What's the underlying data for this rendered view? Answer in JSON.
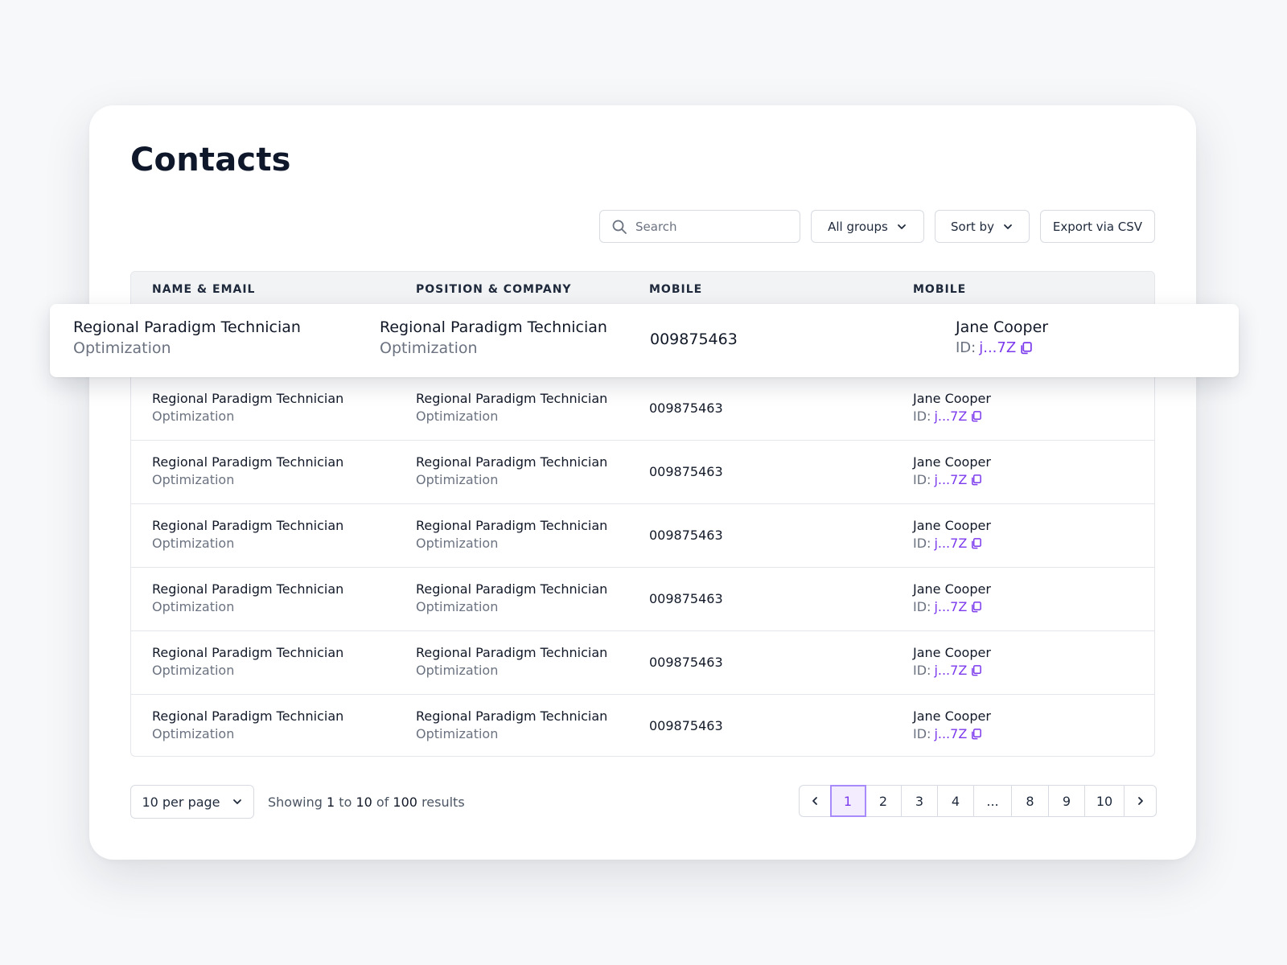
{
  "page": {
    "title": "Contacts"
  },
  "toolbar": {
    "search_placeholder": "Search",
    "groups_label": "All groups",
    "sort_label": "Sort by",
    "export_label": "Export via CSV"
  },
  "table": {
    "columns": [
      "NAME & EMAIL",
      "POSITION & COMPANY",
      "MOBILE",
      "MOBILE"
    ],
    "highlight_row": {
      "name": "Regional Paradigm Technician",
      "email": "Optimization",
      "position": "Regional Paradigm Technician",
      "company": "Optimization",
      "mobile": "009875463",
      "contact_name": "Jane Cooper",
      "id_label": "ID:",
      "id_value": "j...7Z"
    },
    "rows": [
      {
        "name": "Regional Paradigm Technician",
        "email": "Optimization",
        "position": "Regional Paradigm Technician",
        "company": "Optimization",
        "mobile": "009875463",
        "contact_name": "Jane Cooper",
        "id_label": "ID:",
        "id_value": "j...7Z"
      },
      {
        "name": "Regional Paradigm Technician",
        "email": "Optimization",
        "position": "Regional Paradigm Technician",
        "company": "Optimization",
        "mobile": "009875463",
        "contact_name": "Jane Cooper",
        "id_label": "ID:",
        "id_value": "j...7Z"
      },
      {
        "name": "Regional Paradigm Technician",
        "email": "Optimization",
        "position": "Regional Paradigm Technician",
        "company": "Optimization",
        "mobile": "009875463",
        "contact_name": "Jane Cooper",
        "id_label": "ID:",
        "id_value": "j...7Z"
      },
      {
        "name": "Regional Paradigm Technician",
        "email": "Optimization",
        "position": "Regional Paradigm Technician",
        "company": "Optimization",
        "mobile": "009875463",
        "contact_name": "Jane Cooper",
        "id_label": "ID:",
        "id_value": "j...7Z"
      },
      {
        "name": "Regional Paradigm Technician",
        "email": "Optimization",
        "position": "Regional Paradigm Technician",
        "company": "Optimization",
        "mobile": "009875463",
        "contact_name": "Jane Cooper",
        "id_label": "ID:",
        "id_value": "j...7Z"
      },
      {
        "name": "Regional Paradigm Technician",
        "email": "Optimization",
        "position": "Regional Paradigm Technician",
        "company": "Optimization",
        "mobile": "009875463",
        "contact_name": "Jane Cooper",
        "id_label": "ID:",
        "id_value": "j...7Z"
      }
    ]
  },
  "footer": {
    "per_page_label": "10 per page",
    "results_prefix": "Showing",
    "results_from": "1",
    "results_to_word": "to",
    "results_to": "10",
    "results_of_word": "of",
    "results_total": "100",
    "results_suffix": "results",
    "pages": [
      "1",
      "2",
      "3",
      "4",
      "...",
      "8",
      "9",
      "10"
    ],
    "active_page": "1"
  },
  "icons": {
    "search": "search-icon",
    "chevron": "chevron-down-icon",
    "copy": "copy-icon",
    "prev": "chevron-left-icon",
    "next": "chevron-right-icon"
  },
  "colors": {
    "accent": "#7c3aed",
    "accent_bg": "#f3ecff",
    "text": "#111827",
    "muted": "#6b7280",
    "border": "#d7dbe1"
  }
}
